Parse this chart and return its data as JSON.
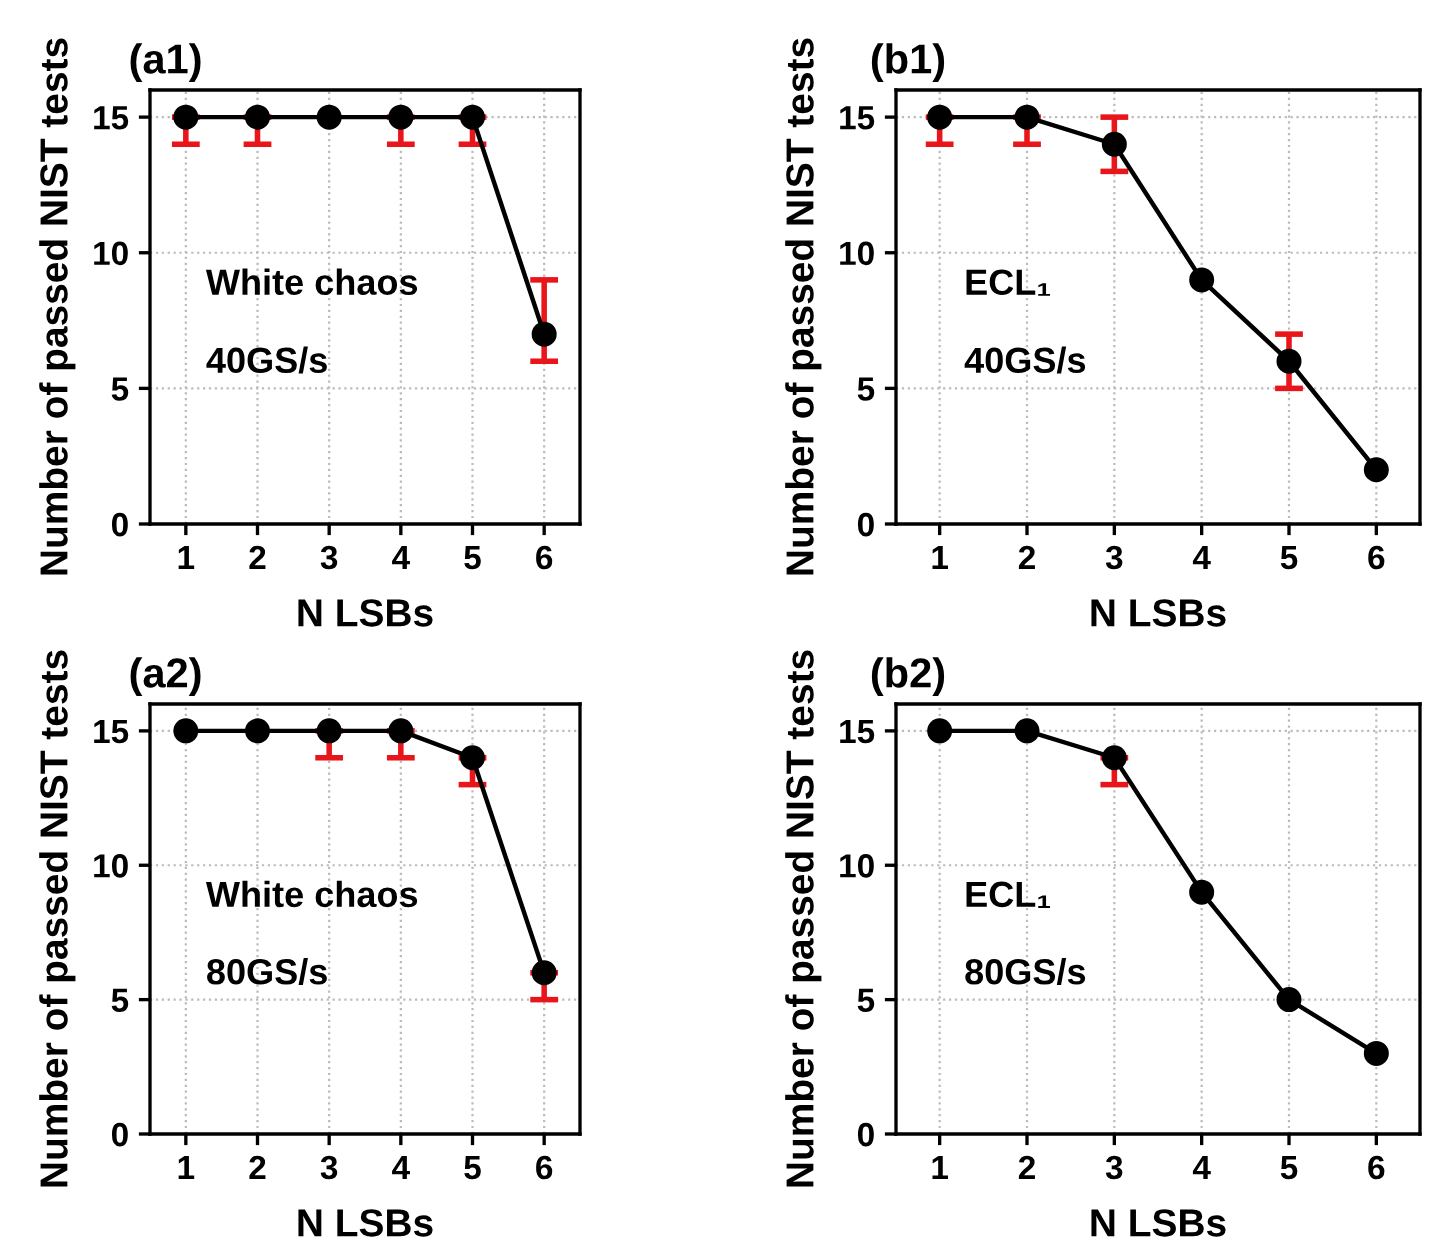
{
  "chart_data": [
    {
      "type": "line",
      "title": "(a1)",
      "xlabel": "N LSBs",
      "ylabel": "Number of passed NIST tests",
      "annotations": [
        "White chaos",
        "40GS/s"
      ],
      "x": [
        1,
        2,
        3,
        4,
        5,
        6
      ],
      "xlim": [
        0.5,
        6.5
      ],
      "xticks": [
        1,
        2,
        3,
        4,
        5,
        6
      ],
      "ylim": [
        0,
        16
      ],
      "yticks": [
        0,
        5,
        10,
        15
      ],
      "grid": true,
      "marker": "circle",
      "line_style": "solid",
      "series": [
        {
          "color": "#000000",
          "values": [
            15,
            15,
            15,
            15,
            15,
            7
          ],
          "errors": [
            [
              14,
              15
            ],
            [
              14,
              15
            ],
            null,
            [
              14,
              15
            ],
            [
              14,
              15
            ],
            [
              6,
              9
            ]
          ]
        }
      ]
    },
    {
      "type": "line",
      "title": "(b1)",
      "xlabel": "N LSBs",
      "ylabel": "Number of passed NIST tests",
      "annotations": [
        "ECL₁",
        "40GS/s"
      ],
      "x": [
        1,
        2,
        3,
        4,
        5,
        6
      ],
      "xlim": [
        0.5,
        6.5
      ],
      "xticks": [
        1,
        2,
        3,
        4,
        5,
        6
      ],
      "ylim": [
        0,
        16
      ],
      "yticks": [
        0,
        5,
        10,
        15
      ],
      "grid": true,
      "marker": "circle",
      "line_style": "solid",
      "series": [
        {
          "color": "#000000",
          "values": [
            15,
            15,
            14,
            9,
            6,
            2
          ],
          "errors": [
            [
              14,
              15
            ],
            [
              14,
              15
            ],
            [
              13,
              15
            ],
            null,
            [
              5,
              7
            ],
            null
          ]
        }
      ]
    },
    {
      "type": "line",
      "title": "(a2)",
      "xlabel": "N LSBs",
      "ylabel": "Number of passed NIST tests",
      "annotations": [
        "White chaos",
        "80GS/s"
      ],
      "x": [
        1,
        2,
        3,
        4,
        5,
        6
      ],
      "xlim": [
        0.5,
        6.5
      ],
      "xticks": [
        1,
        2,
        3,
        4,
        5,
        6
      ],
      "ylim": [
        0,
        16
      ],
      "yticks": [
        0,
        5,
        10,
        15
      ],
      "grid": true,
      "marker": "circle",
      "line_style": "solid",
      "series": [
        {
          "color": "#000000",
          "values": [
            15,
            15,
            15,
            15,
            14,
            6
          ],
          "errors": [
            null,
            null,
            [
              14,
              15
            ],
            [
              14,
              15
            ],
            [
              13,
              14
            ],
            [
              5,
              6
            ]
          ]
        }
      ]
    },
    {
      "type": "line",
      "title": "(b2)",
      "xlabel": "N LSBs",
      "ylabel": "Number of passed NIST tests",
      "annotations": [
        "ECL₁",
        "80GS/s"
      ],
      "x": [
        1,
        2,
        3,
        4,
        5,
        6
      ],
      "xlim": [
        0.5,
        6.5
      ],
      "xticks": [
        1,
        2,
        3,
        4,
        5,
        6
      ],
      "ylim": [
        0,
        16
      ],
      "yticks": [
        0,
        5,
        10,
        15
      ],
      "grid": true,
      "marker": "circle",
      "line_style": "solid",
      "series": [
        {
          "color": "#000000",
          "values": [
            15,
            15,
            14,
            9,
            5,
            3
          ],
          "errors": [
            null,
            null,
            [
              13,
              14
            ],
            null,
            null,
            null
          ]
        }
      ]
    }
  ]
}
